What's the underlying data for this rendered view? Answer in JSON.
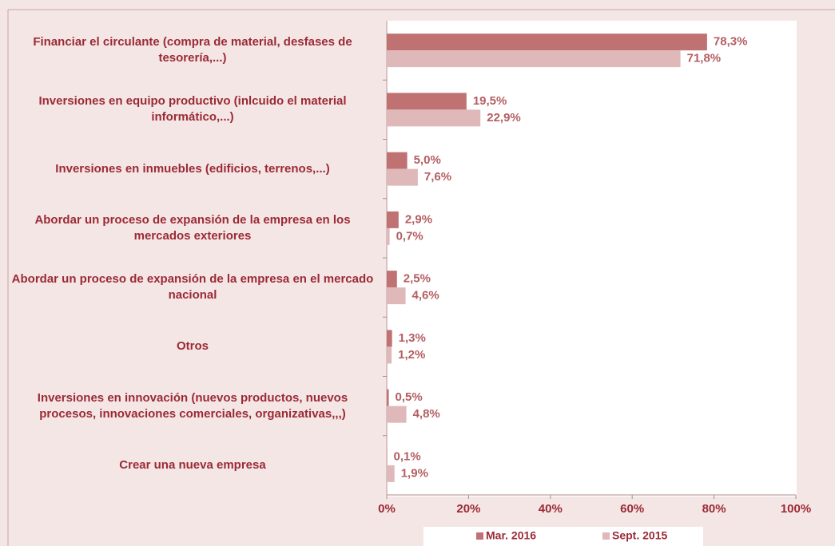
{
  "chart_data": {
    "type": "bar",
    "orientation": "horizontal",
    "categories": [
      "Financiar el circulante (compra de material, desfases de tesorería,...)",
      "Inversiones en equipo productivo (inlcuido el material informático,...)",
      "Inversiones en inmuebles (edificios, terrenos,...)",
      "Abordar un proceso de expansión de la empresa en los mercados exteriores",
      "Abordar un proceso de expansión de la empresa en el mercado nacional",
      "Otros",
      "Inversiones en innovación (nuevos productos, nuevos procesos, innovaciones comerciales, organizativas,,,)",
      "Crear una nueva empresa"
    ],
    "series": [
      {
        "name": "Mar. 2016",
        "color": "#c07272",
        "values": [
          78.3,
          19.5,
          5.0,
          2.9,
          2.5,
          1.3,
          0.5,
          0.1
        ],
        "value_labels": [
          "78,3%",
          "19,5%",
          "5,0%",
          "2,9%",
          "2,5%",
          "1,3%",
          "0,5%",
          "0,1%"
        ]
      },
      {
        "name": "Sept. 2015",
        "color": "#dfb9b9",
        "values": [
          71.8,
          22.9,
          7.6,
          0.7,
          4.6,
          1.2,
          4.8,
          1.9
        ],
        "value_labels": [
          "71,8%",
          "22,9%",
          "7,6%",
          "0,7%",
          "4,6%",
          "1,2%",
          "4,8%",
          "1,9%"
        ]
      }
    ],
    "xlim": [
      0,
      100
    ],
    "xticks": [
      {
        "value": 0,
        "label": "0%"
      },
      {
        "value": 20,
        "label": "20%"
      },
      {
        "value": 40,
        "label": "40%"
      },
      {
        "value": 60,
        "label": "60%"
      },
      {
        "value": 80,
        "label": "80%"
      },
      {
        "value": 100,
        "label": "100%"
      }
    ],
    "grid": false,
    "legend": "bottom"
  }
}
